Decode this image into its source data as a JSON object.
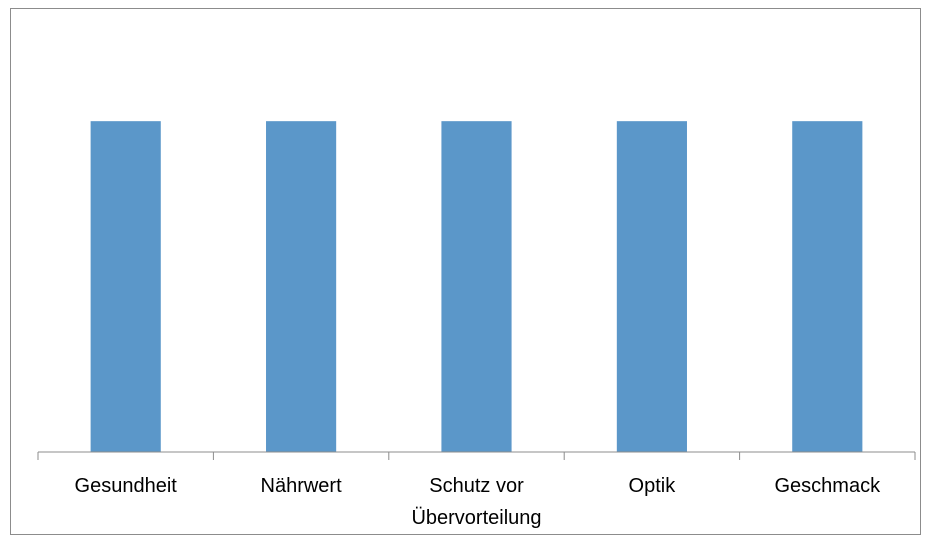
{
  "chart_data": {
    "type": "bar",
    "categories": [
      "Gesundheit",
      "Nährwert",
      "Schutz vor Übervorteilung",
      "Optik",
      "Geschmack"
    ],
    "values": [
      1,
      1,
      1,
      1,
      1
    ],
    "color": "#5b97c9",
    "ylim": [
      0,
      1.2
    ]
  }
}
